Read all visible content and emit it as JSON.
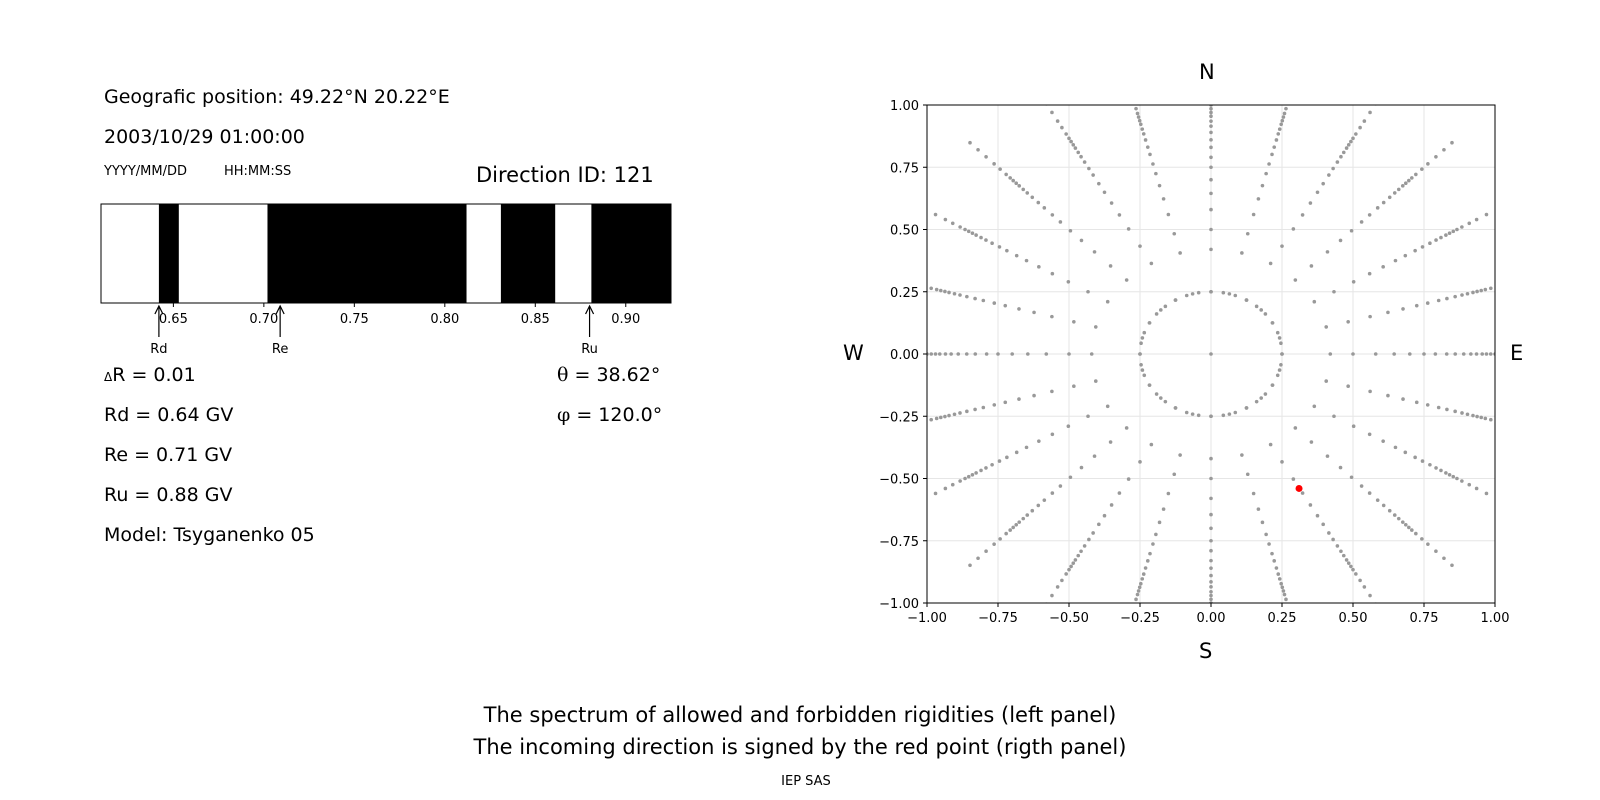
{
  "info": {
    "geo_position": "Geografic position: 49.22°N 20.22°E",
    "datetime": "2003/10/29 01:00:00",
    "date_format": "YYYY/MM/DD",
    "time_format": "HH:MM:SS",
    "direction_id": "Direction ID: 121"
  },
  "params": {
    "delta_symbol": "Δ",
    "delta_r": "R = 0.01",
    "rd": "Rd = 0.64 GV",
    "re": "Re = 0.71 GV",
    "ru": "Ru = 0.88 GV",
    "model": "Model: Tsyganenko 05",
    "theta_symbol": "θ",
    "theta": " = 38.62°",
    "phi_symbol": "φ",
    "phi": " = 120.0°"
  },
  "compass": {
    "north": "N",
    "south": "S",
    "west": "W",
    "east": "E"
  },
  "caption": {
    "line1": "The spectrum of allowed and forbidden rigidities (left panel)",
    "line2": "The incoming direction is signed by the red point (rigth panel)",
    "credit": "IEP SAS"
  },
  "colors": {
    "allowed": "#ffffff",
    "forbidden": "#000000",
    "grid_points": "#999999",
    "direction_point": "#ff0000"
  },
  "chart_data": [
    {
      "type": "bar",
      "title": "",
      "xlabel": "",
      "xlim": [
        0.61,
        0.925
      ],
      "x_ticks": [
        "0.65",
        "0.70",
        "0.75",
        "0.80",
        "0.85",
        "0.90"
      ],
      "forbidden_bands": [
        [
          0.642,
          0.653
        ],
        [
          0.702,
          0.812
        ],
        [
          0.831,
          0.861
        ],
        [
          0.881,
          0.925
        ]
      ],
      "markers": [
        {
          "name": "Rd",
          "value": 0.642
        },
        {
          "name": "Re",
          "value": 0.709
        },
        {
          "name": "Ru",
          "value": 0.88
        }
      ]
    },
    {
      "type": "scatter",
      "xlim": [
        -1.0,
        1.0
      ],
      "ylim": [
        -1.0,
        1.0
      ],
      "x_ticks": [
        "−1.00",
        "−0.75",
        "−0.50",
        "−0.25",
        "0.00",
        "0.25",
        "0.50",
        "0.75",
        "1.00"
      ],
      "y_ticks": [
        "1.00",
        "0.75",
        "0.50",
        "0.25",
        "0.00",
        "−0.25",
        "−0.50",
        "−0.75",
        "−1.00"
      ],
      "grid": true,
      "spokes": 24,
      "ring_radii": [
        0.25,
        0.42,
        0.5,
        0.58,
        0.645,
        0.7,
        0.75,
        0.79,
        0.83,
        0.86,
        0.89,
        0.915,
        0.935,
        0.955,
        0.97,
        0.985,
        1.0,
        1.02,
        1.05,
        1.08,
        1.12,
        1.16,
        1.2
      ],
      "highlight": {
        "x": 0.31,
        "y": -0.54
      }
    }
  ]
}
